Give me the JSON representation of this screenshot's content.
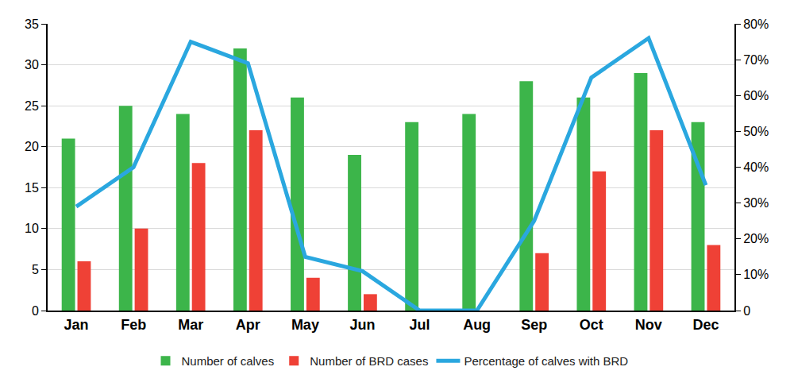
{
  "chart_data": {
    "type": "bar",
    "categories": [
      "Jan",
      "Feb",
      "Mar",
      "Apr",
      "May",
      "Jun",
      "Jul",
      "Aug",
      "Sep",
      "Oct",
      "Nov",
      "Dec"
    ],
    "series": [
      {
        "name": "Number of calves",
        "type": "bar",
        "color": "#3cb54a",
        "values": [
          21,
          25,
          24,
          32,
          26,
          19,
          23,
          24,
          28,
          26,
          29,
          23
        ]
      },
      {
        "name": "Number of BRD cases",
        "type": "bar",
        "color": "#ef4136",
        "values": [
          6,
          10,
          18,
          22,
          4,
          2,
          0,
          0,
          7,
          17,
          22,
          8
        ]
      },
      {
        "name": "Percentage of calves with BRD",
        "type": "line",
        "axis": "y2",
        "color": "#2aa7df",
        "line_style": "solid",
        "values": [
          29,
          40,
          75,
          69,
          15,
          11,
          0,
          0,
          25,
          65,
          76,
          35
        ]
      }
    ],
    "ylim": [
      0,
      35
    ],
    "yticks": [
      0,
      5,
      10,
      15,
      20,
      25,
      30,
      35
    ],
    "y2lim": [
      0,
      80
    ],
    "y2ticks": [
      0,
      {
        "value": 10,
        "label": "10%"
      },
      {
        "value": 20,
        "label": "20%"
      },
      {
        "value": 30,
        "label": "30%"
      },
      {
        "value": 40,
        "label": "40%"
      },
      {
        "value": 50,
        "label": "50%"
      },
      {
        "value": 60,
        "label": "60%"
      },
      {
        "value": 70,
        "label": "70%"
      },
      {
        "value": 80,
        "label": "80%"
      }
    ],
    "grid": true,
    "legend": "bottom"
  }
}
